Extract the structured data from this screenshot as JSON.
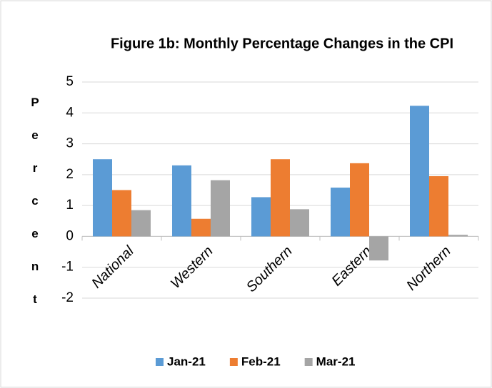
{
  "chart_data": {
    "type": "bar",
    "title": "Figure 1b: Monthly Percentage Changes in the CPI",
    "y_label": "Percent",
    "categories": [
      "National",
      "Western",
      "Southern",
      "Eastern",
      "Northern"
    ],
    "series": [
      {
        "name": "Jan-21",
        "color": "#5b9bd5",
        "values": [
          2.5,
          2.3,
          1.27,
          1.58,
          4.23
        ]
      },
      {
        "name": "Feb-21",
        "color": "#ed7d31",
        "values": [
          1.5,
          0.57,
          2.5,
          2.37,
          1.95
        ]
      },
      {
        "name": "Mar-21",
        "color": "#a5a5a5",
        "values": [
          0.85,
          1.82,
          0.88,
          -0.78,
          0.05
        ]
      }
    ],
    "ylim": [
      -2,
      5
    ],
    "yticks": [
      -2,
      -1,
      0,
      1,
      2,
      3,
      4,
      5
    ],
    "grid": true,
    "legend": "bottom"
  }
}
